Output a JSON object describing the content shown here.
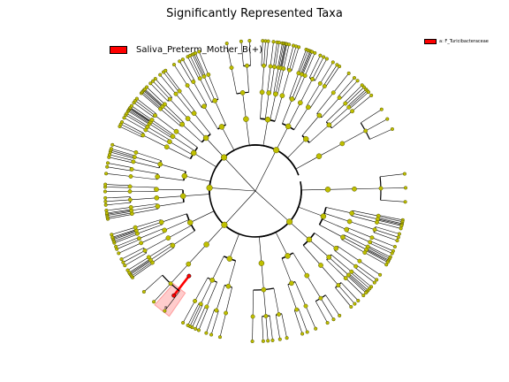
{
  "title": "Significantly Represented Taxa",
  "legend": {
    "class_label": "Saliva_Preterm_Mother_B(+)",
    "class_color": "#ff0000",
    "taxon_key": "a: F_Turicibacteraceae"
  },
  "highlight": {
    "letter": "a",
    "color": "#ff0000"
  },
  "node_color": "#bfbf00"
}
